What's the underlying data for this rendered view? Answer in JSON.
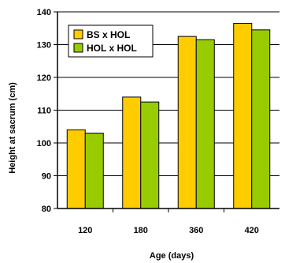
{
  "chart_data": {
    "type": "bar",
    "categories": [
      "120",
      "180",
      "360",
      "420"
    ],
    "series": [
      {
        "name": "BS x HOL",
        "color": "#FFCC00",
        "values": [
          104,
          114,
          132.5,
          136.5
        ]
      },
      {
        "name": "HOL x HOL",
        "color": "#99CC00",
        "values": [
          103,
          112.5,
          131.5,
          134.5
        ]
      }
    ],
    "xlabel": "Age (days)",
    "ylabel": "Height at sacrum (cm)",
    "ylim": [
      80,
      140
    ],
    "yticks": [
      "80",
      "90",
      "100",
      "110",
      "120",
      "130",
      "140"
    ],
    "grid": true,
    "legend": "top-left"
  }
}
